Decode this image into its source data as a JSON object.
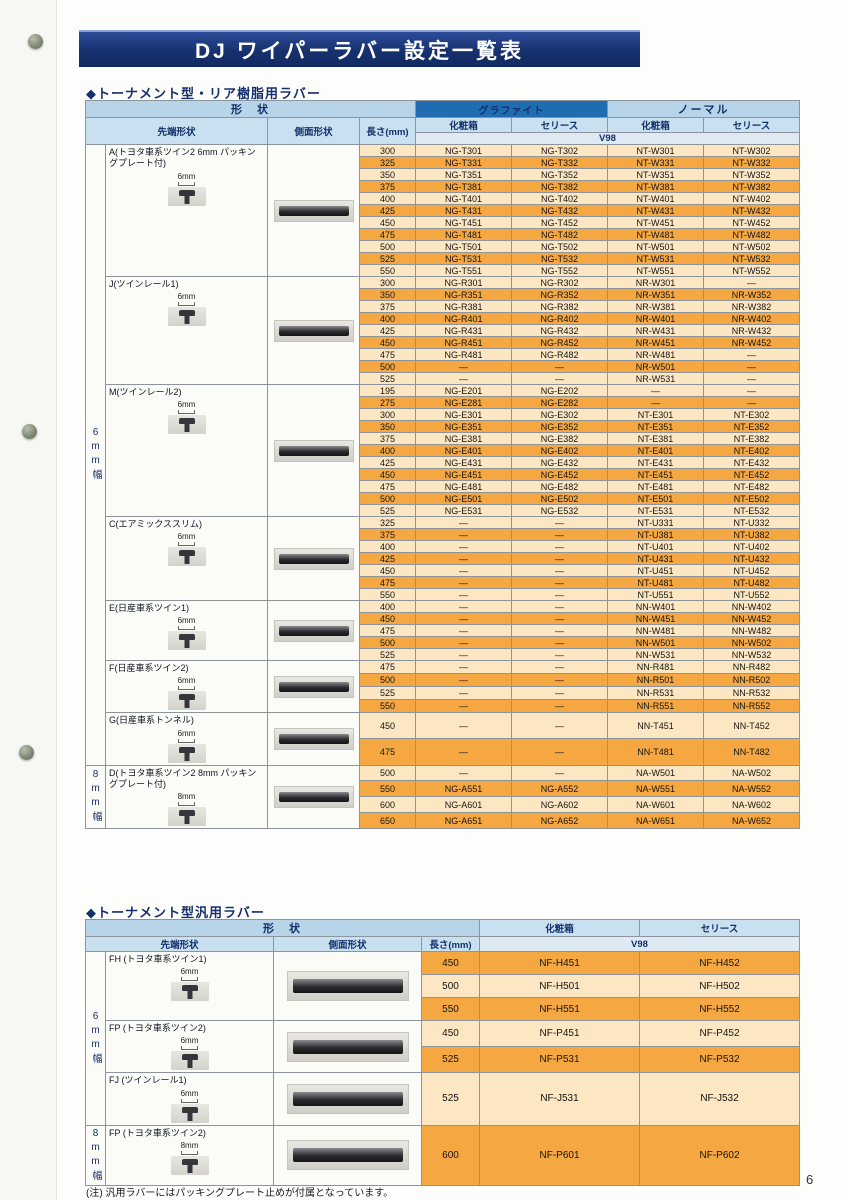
{
  "page": {
    "title": "DJ ワイパーラバー設定一覧表",
    "page_number": "6",
    "note": "(注) 汎用ラバーにはパッキングプレート止めが付属となっています。"
  },
  "colors": {
    "banner_blue": "#17316f",
    "header_light_blue": "#b7d4e8",
    "graphite_header_blue": "#1f6cb0",
    "row_orange": "#f5a742",
    "row_pale": "#fce7c2"
  },
  "table1": {
    "section_title": "◆トーナメント型・リア樹脂用ラバー",
    "headers": {
      "shape": "形　状",
      "graphite": "グラファイト",
      "normal": "ノーマル",
      "tip_shape": "先端形状",
      "side_shape": "側面形状",
      "length": "長さ(mm)",
      "box": "化粧箱",
      "series": "セリース",
      "v98": "V98"
    },
    "band_labels": {
      "6mm": "6mm幅",
      "8mm": "8mm幅"
    },
    "groups": [
      {
        "id": "A",
        "band": "6mm",
        "tip_size": "6mm",
        "label": "A(トヨタ車系ツイン2 6mm パッキングプレート付)",
        "rows": [
          [
            "300",
            "NG-T301",
            "NG-T302",
            "NT-W301",
            "NT-W302"
          ],
          [
            "325",
            "NG-T331",
            "NG-T332",
            "NT-W331",
            "NT-W332"
          ],
          [
            "350",
            "NG-T351",
            "NG-T352",
            "NT-W351",
            "NT-W352"
          ],
          [
            "375",
            "NG-T381",
            "NG-T382",
            "NT-W381",
            "NT-W382"
          ],
          [
            "400",
            "NG-T401",
            "NG-T402",
            "NT-W401",
            "NT-W402"
          ],
          [
            "425",
            "NG-T431",
            "NG-T432",
            "NT-W431",
            "NT-W432"
          ],
          [
            "450",
            "NG-T451",
            "NG-T452",
            "NT-W451",
            "NT-W452"
          ],
          [
            "475",
            "NG-T481",
            "NG-T482",
            "NT-W481",
            "NT-W482"
          ],
          [
            "500",
            "NG-T501",
            "NG-T502",
            "NT-W501",
            "NT-W502"
          ],
          [
            "525",
            "NG-T531",
            "NG-T532",
            "NT-W531",
            "NT-W532"
          ],
          [
            "550",
            "NG-T551",
            "NG-T552",
            "NT-W551",
            "NT-W552"
          ]
        ]
      },
      {
        "id": "J",
        "band": "6mm",
        "tip_size": "6mm",
        "label": "J(ツインレール1)",
        "rows": [
          [
            "300",
            "NG-R301",
            "NG-R302",
            "NR-W301",
            "―"
          ],
          [
            "350",
            "NG-R351",
            "NG-R352",
            "NR-W351",
            "NR-W352"
          ],
          [
            "375",
            "NG-R381",
            "NG-R382",
            "NR-W381",
            "NR-W382"
          ],
          [
            "400",
            "NG-R401",
            "NG-R402",
            "NR-W401",
            "NR-W402"
          ],
          [
            "425",
            "NG-R431",
            "NG-R432",
            "NR-W431",
            "NR-W432"
          ],
          [
            "450",
            "NG-R451",
            "NG-R452",
            "NR-W451",
            "NR-W452"
          ],
          [
            "475",
            "NG-R481",
            "NG-R482",
            "NR-W481",
            "―"
          ],
          [
            "500",
            "―",
            "―",
            "NR-W501",
            "―"
          ],
          [
            "525",
            "―",
            "―",
            "NR-W531",
            "―"
          ]
        ]
      },
      {
        "id": "M",
        "band": "6mm",
        "tip_size": "6mm",
        "label": "M(ツインレール2)",
        "rows": [
          [
            "195",
            "NG-E201",
            "NG-E202",
            "―",
            "―"
          ],
          [
            "275",
            "NG-E281",
            "NG-E282",
            "―",
            "―"
          ],
          [
            "300",
            "NG-E301",
            "NG-E302",
            "NT-E301",
            "NT-E302"
          ],
          [
            "350",
            "NG-E351",
            "NG-E352",
            "NT-E351",
            "NT-E352"
          ],
          [
            "375",
            "NG-E381",
            "NG-E382",
            "NT-E381",
            "NT-E382"
          ],
          [
            "400",
            "NG-E401",
            "NG-E402",
            "NT-E401",
            "NT-E402"
          ],
          [
            "425",
            "NG-E431",
            "NG-E432",
            "NT-E431",
            "NT-E432"
          ],
          [
            "450",
            "NG-E451",
            "NG-E452",
            "NT-E451",
            "NT-E452"
          ],
          [
            "475",
            "NG-E481",
            "NG-E482",
            "NT-E481",
            "NT-E482"
          ],
          [
            "500",
            "NG-E501",
            "NG-E502",
            "NT-E501",
            "NT-E502"
          ],
          [
            "525",
            "NG-E531",
            "NG-E532",
            "NT-E531",
            "NT-E532"
          ]
        ]
      },
      {
        "id": "C",
        "band": "6mm",
        "tip_size": "6mm",
        "label": "C(エアミックススリム)",
        "rows": [
          [
            "325",
            "―",
            "―",
            "NT-U331",
            "NT-U332"
          ],
          [
            "375",
            "―",
            "―",
            "NT-U381",
            "NT-U382"
          ],
          [
            "400",
            "―",
            "―",
            "NT-U401",
            "NT-U402"
          ],
          [
            "425",
            "―",
            "―",
            "NT-U431",
            "NT-U432"
          ],
          [
            "450",
            "―",
            "―",
            "NT-U451",
            "NT-U452"
          ],
          [
            "475",
            "―",
            "―",
            "NT-U481",
            "NT-U482"
          ],
          [
            "550",
            "―",
            "―",
            "NT-U551",
            "NT-U552"
          ]
        ]
      },
      {
        "id": "E",
        "band": "6mm",
        "tip_size": "6mm",
        "label": "E(日産車系ツイン1)",
        "rows": [
          [
            "400",
            "―",
            "―",
            "NN-W401",
            "NN-W402"
          ],
          [
            "450",
            "―",
            "―",
            "NN-W451",
            "NN-W452"
          ],
          [
            "475",
            "―",
            "―",
            "NN-W481",
            "NN-W482"
          ],
          [
            "500",
            "―",
            "―",
            "NN-W501",
            "NN-W502"
          ],
          [
            "525",
            "―",
            "―",
            "NN-W531",
            "NN-W532"
          ]
        ]
      },
      {
        "id": "F",
        "band": "6mm",
        "tip_size": "6mm",
        "label": "F(日産車系ツイン2)",
        "rows": [
          [
            "475",
            "―",
            "―",
            "NN-R481",
            "NN-R482"
          ],
          [
            "500",
            "―",
            "―",
            "NN-R501",
            "NN-R502"
          ],
          [
            "525",
            "―",
            "―",
            "NN-R531",
            "NN-R532"
          ],
          [
            "550",
            "―",
            "―",
            "NN-R551",
            "NN-R552"
          ]
        ]
      },
      {
        "id": "G",
        "band": "6mm",
        "tip_size": "6mm",
        "label": "G(日産車系トンネル)",
        "rows": [
          [
            "450",
            "―",
            "―",
            "NN-T451",
            "NN-T452"
          ],
          [
            "475",
            "―",
            "―",
            "NN-T481",
            "NN-T482"
          ]
        ]
      },
      {
        "id": "D",
        "band": "8mm",
        "tip_size": "8mm",
        "label": "D(トヨタ車系ツイン2 8mm パッキングプレート付)",
        "rows": [
          [
            "500",
            "―",
            "―",
            "NA-W501",
            "NA-W502"
          ],
          [
            "550",
            "NG-A551",
            "NG-A552",
            "NA-W551",
            "NA-W552"
          ],
          [
            "600",
            "NG-A601",
            "NG-A602",
            "NA-W601",
            "NA-W602"
          ],
          [
            "650",
            "NG-A651",
            "NG-A652",
            "NA-W651",
            "NA-W652"
          ]
        ]
      }
    ]
  },
  "table2": {
    "section_title": "◆トーナメント型汎用ラバー",
    "headers": {
      "shape": "形　状",
      "tip_shape": "先端形状",
      "side_shape": "側面形状",
      "length": "長さ(mm)",
      "box": "化粧箱",
      "series": "セリース",
      "v98": "V98"
    },
    "band_labels": {
      "6mm": "6mm幅",
      "8mm": "8mm幅"
    },
    "groups": [
      {
        "id": "FH",
        "band": "6mm",
        "tip_size": "6mm",
        "label": "FH (トヨタ車系ツイン1)",
        "rows": [
          [
            "450",
            "NF-H451",
            "NF-H452"
          ],
          [
            "500",
            "NF-H501",
            "NF-H502"
          ],
          [
            "550",
            "NF-H551",
            "NF-H552"
          ]
        ]
      },
      {
        "id": "FP6",
        "band": "6mm",
        "tip_size": "6mm",
        "label": "FP (トヨタ車系ツイン2)",
        "rows": [
          [
            "450",
            "NF-P451",
            "NF-P452"
          ],
          [
            "525",
            "NF-P531",
            "NF-P532"
          ]
        ]
      },
      {
        "id": "FJ",
        "band": "6mm",
        "tip_size": "6mm",
        "label": "FJ (ツインレール1)",
        "rows": [
          [
            "525",
            "NF-J531",
            "NF-J532"
          ]
        ]
      },
      {
        "id": "FP8",
        "band": "8mm",
        "tip_size": "8mm",
        "label": "FP (トヨタ車系ツイン2)",
        "rows": [
          [
            "600",
            "NF-P601",
            "NF-P602"
          ]
        ]
      }
    ]
  }
}
